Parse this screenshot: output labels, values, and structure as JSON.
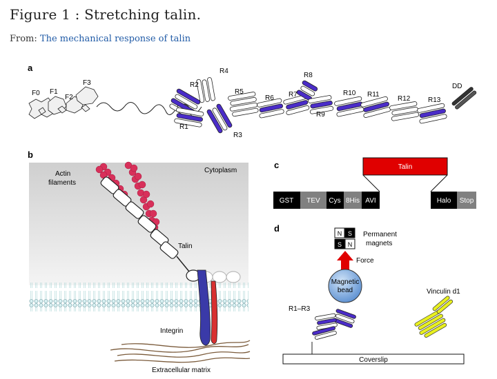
{
  "header": {
    "title": "Figure 1 : Stretching talin.",
    "from_label": "From:",
    "from_link": "The mechanical response of talin"
  },
  "panels": {
    "a": {
      "letter": "a",
      "domains": {
        "F0": "F0",
        "F1": "F1",
        "F2": "F2",
        "F3": "F3",
        "R1": "R1",
        "R2": "R2",
        "R3": "R3",
        "R4": "R4",
        "R5": "R5",
        "R6": "R6",
        "R7": "R7",
        "R8": "R8",
        "R9": "R9",
        "R10": "R10",
        "R11": "R11",
        "R12": "R12",
        "R13": "R13",
        "DD": "DD"
      }
    },
    "b": {
      "letter": "b",
      "actin": "Actin",
      "filaments": "filaments",
      "cytoplasm": "Cytoplasm",
      "talin": "Talin",
      "integrin": "Integrin",
      "ecm": "Extracellular matrix"
    },
    "c": {
      "letter": "c",
      "talin": "Talin",
      "gst": "GST",
      "tev": "TEV",
      "cys": "Cys",
      "his": "8His",
      "avi": "AVI",
      "halo": "Halo",
      "stop": "Stop"
    },
    "d": {
      "letter": "d",
      "magnets_1": "Permanent",
      "magnets_2": "magnets",
      "force": "Force",
      "bead_1": "Magnetic",
      "bead_2": "bead",
      "r1r3": "R1–R3",
      "vinculin": "Vinculin d1",
      "coverslip": "Coverslip",
      "n": "N",
      "s": "S"
    }
  },
  "colors": {
    "link": "#1f5aa6",
    "helix_purple": "#4a2cc8",
    "talin_red": "#e00000",
    "actin_red": "#d8305a",
    "integrin_blue": "#3a3aa8",
    "integrin_red": "#d83030",
    "vinculin_yellow": "#e8f020",
    "membrane": "#bfe4e8"
  }
}
